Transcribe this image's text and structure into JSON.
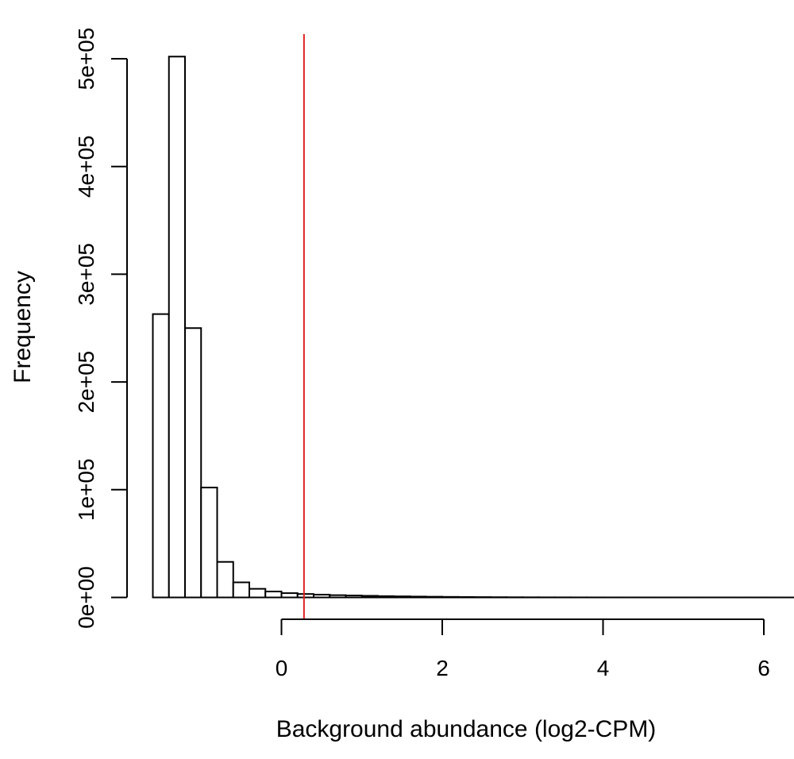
{
  "chart_data": {
    "type": "bar",
    "title": "",
    "xlabel": "Background abundance (log2-CPM)",
    "ylabel": "Frequency",
    "xlim": [
      -1.6,
      6.2
    ],
    "ylim": [
      0,
      500000
    ],
    "x_ticks": [
      0,
      2,
      4,
      6
    ],
    "y_ticks": [
      0,
      100000,
      200000,
      300000,
      400000,
      500000
    ],
    "y_tick_labels": [
      "0e+00",
      "1e+05",
      "2e+05",
      "3e+05",
      "4e+05",
      "5e+05"
    ],
    "x_tick_labels": [
      "0",
      "2",
      "4",
      "6"
    ],
    "bin_width": 0.2,
    "bins": [
      {
        "start": -1.6,
        "end": -1.4,
        "count": 263000
      },
      {
        "start": -1.4,
        "end": -1.2,
        "count": 502000
      },
      {
        "start": -1.2,
        "end": -1.0,
        "count": 250000
      },
      {
        "start": -1.0,
        "end": -0.8,
        "count": 102000
      },
      {
        "start": -0.8,
        "end": -0.6,
        "count": 33000
      },
      {
        "start": -0.6,
        "end": -0.4,
        "count": 14000
      },
      {
        "start": -0.4,
        "end": -0.2,
        "count": 8000
      },
      {
        "start": -0.2,
        "end": 0.0,
        "count": 5500
      },
      {
        "start": 0.0,
        "end": 0.2,
        "count": 4000
      },
      {
        "start": 0.2,
        "end": 0.4,
        "count": 3200
      },
      {
        "start": 0.4,
        "end": 0.6,
        "count": 2600
      },
      {
        "start": 0.6,
        "end": 0.8,
        "count": 2100
      },
      {
        "start": 0.8,
        "end": 1.0,
        "count": 1800
      },
      {
        "start": 1.0,
        "end": 1.2,
        "count": 1500
      },
      {
        "start": 1.2,
        "end": 1.4,
        "count": 1200
      },
      {
        "start": 1.4,
        "end": 1.6,
        "count": 1000
      },
      {
        "start": 1.6,
        "end": 1.8,
        "count": 800
      },
      {
        "start": 1.8,
        "end": 2.0,
        "count": 650
      },
      {
        "start": 2.0,
        "end": 2.2,
        "count": 500
      },
      {
        "start": 2.2,
        "end": 2.4,
        "count": 400
      },
      {
        "start": 2.4,
        "end": 2.6,
        "count": 300
      },
      {
        "start": 2.6,
        "end": 2.8,
        "count": 220
      },
      {
        "start": 2.8,
        "end": 3.0,
        "count": 160
      },
      {
        "start": 3.0,
        "end": 3.2,
        "count": 120
      },
      {
        "start": 3.2,
        "end": 3.4,
        "count": 90
      },
      {
        "start": 3.4,
        "end": 3.6,
        "count": 70
      },
      {
        "start": 3.6,
        "end": 3.8,
        "count": 50
      },
      {
        "start": 3.8,
        "end": 4.0,
        "count": 40
      },
      {
        "start": 4.0,
        "end": 4.2,
        "count": 30
      },
      {
        "start": 4.2,
        "end": 4.4,
        "count": 25
      },
      {
        "start": 4.4,
        "end": 4.6,
        "count": 20
      },
      {
        "start": 4.6,
        "end": 4.8,
        "count": 15
      },
      {
        "start": 4.8,
        "end": 5.0,
        "count": 12
      },
      {
        "start": 5.0,
        "end": 5.2,
        "count": 10
      },
      {
        "start": 5.2,
        "end": 5.4,
        "count": 8
      },
      {
        "start": 5.4,
        "end": 5.6,
        "count": 6
      },
      {
        "start": 5.6,
        "end": 5.8,
        "count": 5
      },
      {
        "start": 5.8,
        "end": 6.0,
        "count": 4
      },
      {
        "start": 6.0,
        "end": 6.2,
        "count": 3
      }
    ],
    "threshold": {
      "x": 0.28,
      "color": "#e02020"
    },
    "bar_fill": "#ffffff",
    "bar_stroke": "#000000",
    "grid": false,
    "legend": "none"
  }
}
